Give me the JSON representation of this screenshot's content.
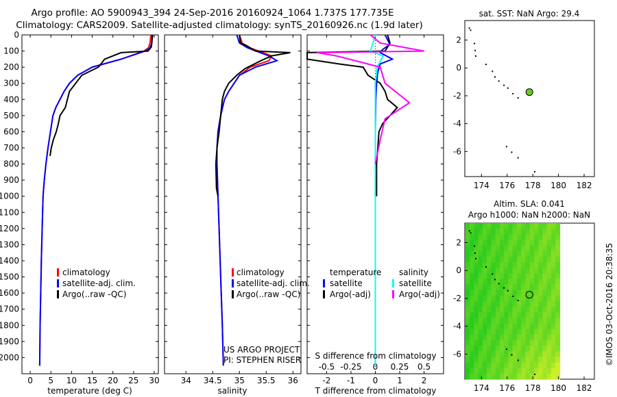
{
  "header": {
    "line1": "Argo profile: AO 5900943_394 24-Sep-2016 20160924_1064 1.737S 177.735E",
    "line2": "Climatology: CARS2009. Satellite-adjusted climatology: synTS_20160926.nc (1.9d later)"
  },
  "colors": {
    "climatology": "#ff0000",
    "satellite": "#0000ff",
    "argo": "#000000",
    "argo_adj_s": "#ff00ff",
    "satellite_s": "#00ffff",
    "map_green": "#2fcf2f",
    "map_yellow": "#c8f020",
    "argo_dot": "#66cc22"
  },
  "chart_data": [
    {
      "type": "line",
      "name": "temperature-profile",
      "xlabel": "temperature (deg C)",
      "xlim": [
        -2,
        31
      ],
      "xticks": [
        0,
        5,
        10,
        15,
        20,
        25,
        30
      ],
      "ylim": [
        0,
        2100
      ],
      "yticks": [
        0,
        100,
        200,
        300,
        400,
        500,
        600,
        700,
        800,
        900,
        1000,
        1100,
        1200,
        1300,
        1400,
        1500,
        1600,
        1700,
        1800,
        1900,
        2000
      ],
      "y_reversed": true,
      "legend": [
        "climatology",
        "satellite-adj. clim.",
        "Argo(..raw -QC)"
      ],
      "series": [
        {
          "name": "climatology",
          "color": "#ff0000",
          "x": [
            29.2,
            29.0,
            28.6,
            27.5,
            22,
            15,
            11.5,
            9.5,
            8.2,
            7.2,
            6.2,
            5.5,
            4.9,
            4.3,
            3.8,
            3.4,
            3.1,
            2.9,
            2.7,
            2.55,
            2.4,
            2.3
          ],
          "y": [
            0,
            50,
            80,
            100,
            150,
            200,
            250,
            300,
            350,
            400,
            450,
            500,
            600,
            700,
            800,
            900,
            1000,
            1200,
            1400,
            1600,
            1800,
            2050
          ]
        },
        {
          "name": "satellite-adj. clim.",
          "color": "#0000ff",
          "x": [
            29.6,
            29.4,
            29.0,
            27.8,
            22,
            15,
            11.5,
            9.5,
            8.2,
            7.2,
            6.2,
            5.5,
            4.9,
            4.3,
            3.8,
            3.4,
            3.1,
            2.9,
            2.7,
            2.55,
            2.4,
            2.3
          ],
          "y": [
            0,
            50,
            80,
            100,
            150,
            200,
            250,
            300,
            350,
            400,
            450,
            500,
            600,
            700,
            800,
            900,
            1000,
            1200,
            1400,
            1600,
            1800,
            2050
          ]
        },
        {
          "name": "Argo(..raw -QC)",
          "color": "#000000",
          "x": [
            29.5,
            29.4,
            29.3,
            28.5,
            22,
            18,
            16.5,
            12.5,
            11,
            9.5,
            8.5,
            7.2,
            6.8,
            6.3,
            5.6,
            5.1,
            4.8
          ],
          "y": [
            0,
            50,
            75,
            100,
            110,
            150,
            200,
            250,
            300,
            350,
            450,
            500,
            550,
            600,
            650,
            700,
            750
          ]
        }
      ]
    },
    {
      "type": "line",
      "name": "salinity-profile",
      "xlabel": "salinity",
      "xlim": [
        33.6,
        36.15
      ],
      "xticks": [
        34,
        34.5,
        35,
        35.5,
        36
      ],
      "ylim": [
        0,
        2100
      ],
      "y_reversed": true,
      "legend": [
        "climatology",
        "satellite-adj. clim.",
        "Argo(..raw -QC)"
      ],
      "series": [
        {
          "name": "climatology",
          "color": "#ff0000",
          "x": [
            35.0,
            35.05,
            35.2,
            35.6,
            35.55,
            35.2,
            35.0,
            34.9,
            34.8,
            34.72,
            34.65,
            34.6,
            34.58,
            34.58,
            34.6,
            34.62,
            34.65,
            34.68,
            34.7
          ],
          "y": [
            0,
            50,
            80,
            130,
            160,
            200,
            250,
            300,
            350,
            400,
            500,
            600,
            700,
            800,
            1000,
            1200,
            1500,
            1800,
            2050
          ]
        },
        {
          "name": "satellite-adj. clim.",
          "color": "#0000ff",
          "x": [
            34.95,
            35.0,
            35.15,
            35.55,
            35.7,
            35.3,
            35.0,
            34.9,
            34.8,
            34.72,
            34.65,
            34.6,
            34.58,
            34.58,
            34.6,
            34.62,
            34.65,
            34.68,
            34.7
          ],
          "y": [
            0,
            50,
            80,
            130,
            160,
            200,
            250,
            300,
            350,
            400,
            500,
            600,
            700,
            800,
            1000,
            1200,
            1500,
            1800,
            2050
          ]
        },
        {
          "name": "Argo(..raw -QC)",
          "color": "#000000",
          "x": [
            35.0,
            35.02,
            35.15,
            35.3,
            35.95,
            35.6,
            35.4,
            35.1,
            34.95,
            34.8,
            34.72,
            34.68,
            34.65,
            34.62,
            34.58,
            34.56,
            34.57,
            34.6
          ],
          "y": [
            0,
            50,
            70,
            100,
            110,
            130,
            160,
            210,
            250,
            300,
            350,
            400,
            500,
            600,
            700,
            800,
            950,
            1000
          ]
        }
      ]
    },
    {
      "type": "line",
      "name": "difference-profile",
      "xlabel": "T difference from climatology",
      "xlabel_top": "S difference from climatology",
      "xlim": [
        -2.8,
        2.8
      ],
      "xticks": [
        -2,
        -1,
        0,
        1,
        2
      ],
      "xticks_top": [
        -0.5,
        -0.25,
        0,
        0.25,
        0.5
      ],
      "ylim": [
        0,
        2100
      ],
      "y_reversed": true,
      "legend_temperature": [
        "temperature",
        "satellite",
        "Argo(-adj)"
      ],
      "legend_salinity": [
        "salinity",
        "satellite",
        "Argo(-adj)"
      ],
      "series": [
        {
          "name": "temperature satellite",
          "color": "#0000ff",
          "x": [
            0.4,
            0.5,
            0.6,
            0.3,
            0.2,
            0.7,
            0.2,
            0.1,
            0.05,
            0.02,
            0.0,
            0.0,
            0.0
          ],
          "y": [
            0,
            30,
            60,
            90,
            110,
            150,
            180,
            230,
            300,
            400,
            600,
            1000,
            2050
          ]
        },
        {
          "name": "temperature Argo(-adj)",
          "color": "#000000",
          "x": [
            0.5,
            0.6,
            0.4,
            -2.8,
            -2.8,
            -1.5,
            -0.5,
            -0.3,
            0.2,
            0.4,
            0.5,
            0.9,
            0.6,
            0.3,
            0.15,
            0.1,
            0.05,
            0.05,
            0.05
          ],
          "y": [
            0,
            50,
            100,
            110,
            150,
            180,
            200,
            250,
            300,
            350,
            400,
            450,
            500,
            550,
            600,
            700,
            800,
            900,
            1000
          ]
        },
        {
          "name": "salinity satellite",
          "color": "#00ffff",
          "x": [
            0.0,
            -0.05,
            0.08,
            0.02,
            0.0,
            0.0
          ],
          "y": [
            0,
            100,
            130,
            200,
            300,
            2050
          ]
        },
        {
          "name": "salinity Argo(-adj)",
          "color": "#ff00ff",
          "x": [
            -0.05,
            0.05,
            0.5,
            -0.6,
            -0.4,
            0.05,
            0.1,
            0.35,
            0.1,
            0.05,
            0.0
          ],
          "y": [
            0,
            50,
            100,
            110,
            130,
            200,
            300,
            420,
            520,
            650,
            800
          ]
        }
      ]
    },
    {
      "type": "scatter",
      "name": "sst-map",
      "title": "sat. SST: NaN Argo: 29.4",
      "xlim": [
        172.7,
        182.8
      ],
      "ylim": [
        -7.8,
        3.4
      ],
      "xticks": [
        174,
        176,
        178,
        180,
        182
      ],
      "yticks": [
        2,
        0,
        -2,
        -4,
        -6
      ],
      "argo_position": [
        177.735,
        -1.737
      ]
    },
    {
      "type": "heatmap",
      "name": "sla-map",
      "title_line1": "Altim. SLA: 0.041",
      "title_line2": "Argo h1000: NaN h2000: NaN",
      "xlim": [
        172.7,
        182.8
      ],
      "ylim": [
        -7.8,
        3.4
      ],
      "xticks": [
        174,
        176,
        178,
        180,
        182
      ],
      "yticks": [
        2,
        0,
        -2,
        -4,
        -6
      ],
      "argo_position": [
        177.735,
        -1.737
      ],
      "data_extent_x": [
        172.75,
        180.1
      ]
    }
  ],
  "legend_left": {
    "item1": "climatology",
    "item2": "satellite-adj. clim.",
    "item3": "Argo(..raw -QC)"
  },
  "legend_mid": {
    "item1": "climatology",
    "item2": "satellite-adj. clim.",
    "item3": "Argo(..raw -QC)"
  },
  "legend_right": {
    "temp_head": "temperature",
    "temp1": "satellite",
    "temp2": "Argo(-adj)",
    "sal_head": "salinity",
    "sal1": "satellite",
    "sal2": "Argo(-adj)"
  },
  "credits": {
    "line1": "US ARGO PROJECT",
    "line2": "PI: STEPHEN RISER"
  },
  "timestamp": "©IMOS 03-Oct-2016 20:38:35"
}
